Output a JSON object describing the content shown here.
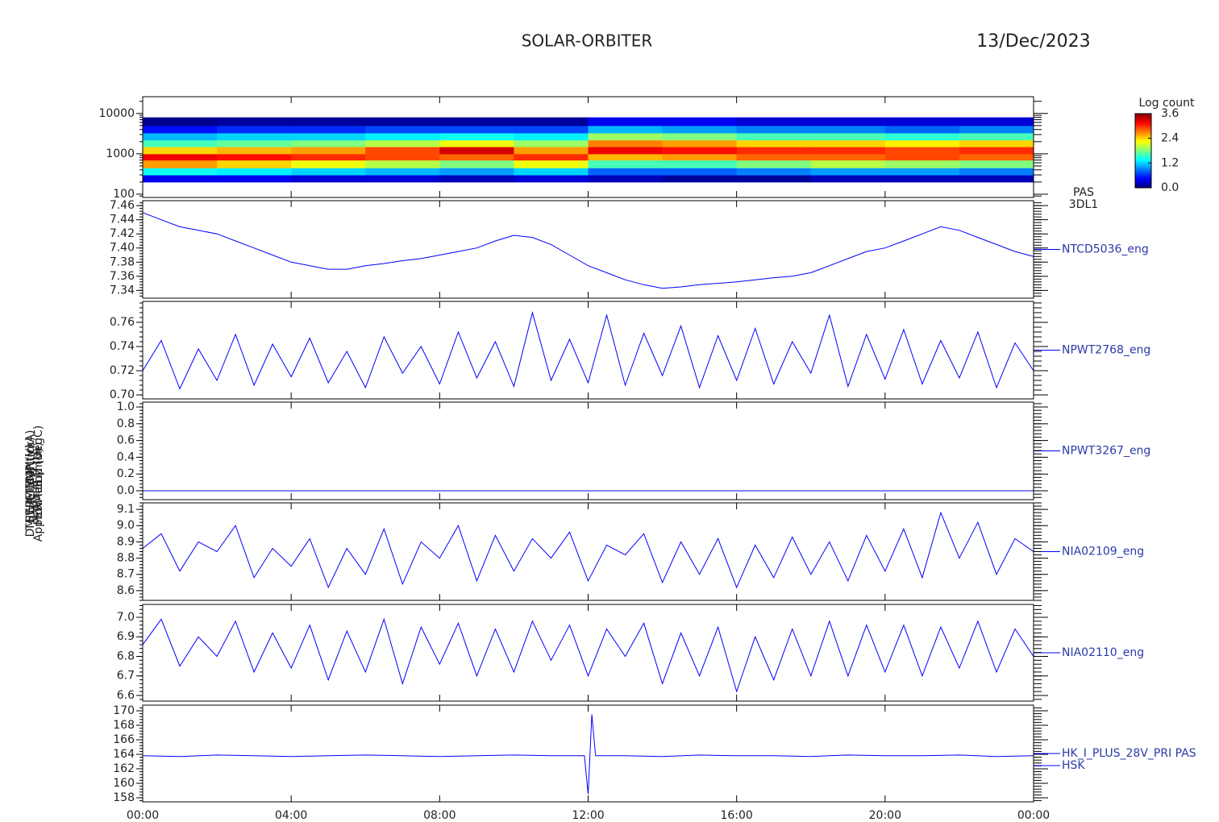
{
  "title": "SOLAR-ORBITER",
  "date": "13/Dec/2023",
  "chart_data": [
    {
      "type": "heatmap",
      "y_label": "E (eV)",
      "instrument": [
        "PAS",
        "3DL1"
      ],
      "log": true,
      "xlim": [
        0,
        24
      ],
      "ylim": [
        83,
        26000
      ],
      "yticks": [
        100,
        1000,
        10000
      ],
      "x_bins": [
        0,
        2,
        4,
        6,
        8,
        10,
        12,
        14,
        16,
        18,
        20,
        22,
        24
      ],
      "y_bins": [
        200,
        300,
        450,
        700,
        1000,
        1500,
        2200,
        3300,
        5000,
        8000
      ],
      "z": [
        [
          0.4,
          0.4,
          0.3,
          0.3,
          0.2,
          0.3,
          0.2,
          0.1,
          0.1,
          0.2,
          0.2,
          0.2
        ],
        [
          1.4,
          1.3,
          1.2,
          1.1,
          1.0,
          1.2,
          0.8,
          0.8,
          0.9,
          1.0,
          1.0,
          0.9
        ],
        [
          2.6,
          2.4,
          2.2,
          2.0,
          1.8,
          2.2,
          1.6,
          1.6,
          1.8,
          2.0,
          1.9,
          1.8
        ],
        [
          3.2,
          3.1,
          3.0,
          2.9,
          2.8,
          3.0,
          2.5,
          2.6,
          2.8,
          2.8,
          2.9,
          2.8
        ],
        [
          2.4,
          2.5,
          2.6,
          2.9,
          3.3,
          2.6,
          3.2,
          3.1,
          3.0,
          3.0,
          2.9,
          3.0
        ],
        [
          1.6,
          1.7,
          1.8,
          2.0,
          2.2,
          1.9,
          2.7,
          2.6,
          2.4,
          2.4,
          2.3,
          2.4
        ],
        [
          1.1,
          1.2,
          1.2,
          1.3,
          1.4,
          1.3,
          1.9,
          1.8,
          1.6,
          1.6,
          1.5,
          1.6
        ],
        [
          0.5,
          0.6,
          0.6,
          0.7,
          0.7,
          0.7,
          1.1,
          1.0,
          0.9,
          0.9,
          0.8,
          0.9
        ],
        [
          0.05,
          0.1,
          0.1,
          0.1,
          0.1,
          0.1,
          0.4,
          0.4,
          0.3,
          0.3,
          0.3,
          0.3
        ]
      ],
      "colormap": [
        "#000080",
        "#0000ff",
        "#0080ff",
        "#00ffff",
        "#80ff80",
        "#ffff00",
        "#ff8000",
        "#ff0000",
        "#800000"
      ],
      "colorbar": {
        "label": "Log count",
        "lim": [
          0,
          3.6
        ],
        "ticks": [
          {
            "value": 0,
            "label": "0.0"
          },
          1.2,
          2.4,
          3.6
        ]
      }
    },
    {
      "type": "line",
      "y_label": "Approx Temp (DegC)",
      "xlim": [
        0,
        24
      ],
      "ylim": [
        7.329,
        7.467
      ],
      "yticks": [
        7.34,
        7.36,
        7.38,
        {
          "value": 7.4,
          "label": "7.40"
        },
        7.42,
        7.44,
        7.46
      ],
      "x": [
        0,
        0.5,
        1,
        1.5,
        2,
        2.5,
        3,
        3.5,
        4,
        4.5,
        5,
        5.5,
        6,
        6.5,
        7,
        7.5,
        8,
        8.5,
        9,
        9.5,
        10,
        10.5,
        11,
        11.5,
        12,
        12.5,
        13,
        13.5,
        14,
        14.5,
        15,
        15.5,
        16,
        16.5,
        17,
        17.5,
        18,
        18.5,
        19,
        19.5,
        20,
        20.5,
        21,
        21.5,
        22,
        22.5,
        23,
        23.5,
        24
      ],
      "series": [
        {
          "name": "NTCD5036_eng",
          "color": "#0000ff",
          "values": [
            7.45,
            7.44,
            7.43,
            7.425,
            7.42,
            7.41,
            7.4,
            7.39,
            7.38,
            7.375,
            7.37,
            7.37,
            7.375,
            7.378,
            7.382,
            7.385,
            7.39,
            7.395,
            7.4,
            7.41,
            7.418,
            7.415,
            7.405,
            7.39,
            7.375,
            7.365,
            7.355,
            7.348,
            7.343,
            7.345,
            7.348,
            7.35,
            7.352,
            7.355,
            7.358,
            7.36,
            7.365,
            7.375,
            7.385,
            7.395,
            7.4,
            7.41,
            7.42,
            7.43,
            7.425,
            7.415,
            7.405,
            7.395,
            7.388
          ]
        }
      ]
    },
    {
      "type": "line",
      "y_label": "SWA-TEMP (V)",
      "xlim": [
        0,
        24
      ],
      "ylim": [
        0.6967,
        0.7773
      ],
      "yticks": [
        {
          "value": 0.7,
          "label": "0.70"
        },
        0.72,
        0.74,
        0.76
      ],
      "x": [
        0,
        0.5,
        1,
        1.5,
        2,
        2.5,
        3,
        3.5,
        4,
        4.5,
        5,
        5.5,
        6,
        6.5,
        7,
        7.5,
        8,
        8.5,
        9,
        9.5,
        10,
        10.5,
        11,
        11.5,
        12,
        12.5,
        13,
        13.5,
        14,
        14.5,
        15,
        15.5,
        16,
        16.5,
        17,
        17.5,
        18,
        18.5,
        19,
        19.5,
        20,
        20.5,
        21,
        21.5,
        22,
        22.5,
        23,
        23.5,
        24
      ],
      "series": [
        {
          "name": "NPWT2768_eng",
          "color": "#0000ff",
          "values": [
            0.72,
            0.745,
            0.705,
            0.738,
            0.712,
            0.75,
            0.708,
            0.742,
            0.715,
            0.747,
            0.71,
            0.736,
            0.706,
            0.748,
            0.718,
            0.74,
            0.709,
            0.752,
            0.714,
            0.744,
            0.707,
            0.768,
            0.712,
            0.746,
            0.71,
            0.766,
            0.708,
            0.751,
            0.716,
            0.757,
            0.706,
            0.749,
            0.712,
            0.755,
            0.709,
            0.744,
            0.718,
            0.766,
            0.707,
            0.75,
            0.713,
            0.754,
            0.709,
            0.745,
            0.714,
            0.752,
            0.706,
            0.743,
            0.72
          ]
        }
      ]
    },
    {
      "type": "line",
      "y_label": "SWA-LLM (V)",
      "xlim": [
        0,
        24
      ],
      "ylim": [
        -0.106,
        1.058
      ],
      "yticks": [
        {
          "value": 0,
          "label": "0.0"
        },
        0.2,
        0.4,
        0.6,
        0.8,
        {
          "value": 1,
          "label": "1.0"
        }
      ],
      "x": [
        0,
        24
      ],
      "series": [
        {
          "name": "NPWT3267_eng",
          "color": "#0000ff",
          "values": [
            0,
            0
          ]
        }
      ]
    },
    {
      "type": "line",
      "y_label": "THERM_C4 (tick)",
      "xlim": [
        0,
        24
      ],
      "ylim": [
        8.54,
        9.14
      ],
      "yticks": [
        8.6,
        8.7,
        8.8,
        8.9,
        {
          "value": 9,
          "label": "9.0"
        },
        9.1
      ],
      "x": [
        0,
        0.5,
        1,
        1.5,
        2,
        2.5,
        3,
        3.5,
        4,
        4.5,
        5,
        5.5,
        6,
        6.5,
        7,
        7.5,
        8,
        8.5,
        9,
        9.5,
        10,
        10.5,
        11,
        11.5,
        12,
        12.5,
        13,
        13.5,
        14,
        14.5,
        15,
        15.5,
        16,
        16.5,
        17,
        17.5,
        18,
        18.5,
        19,
        19.5,
        20,
        20.5,
        21,
        21.5,
        22,
        22.5,
        23,
        23.5,
        24
      ],
      "series": [
        {
          "name": "NIA02109_eng",
          "color": "#0000ff",
          "values": [
            8.86,
            8.95,
            8.72,
            8.9,
            8.84,
            9.0,
            8.68,
            8.86,
            8.75,
            8.92,
            8.62,
            8.86,
            8.7,
            8.98,
            8.64,
            8.9,
            8.8,
            9.0,
            8.66,
            8.94,
            8.72,
            8.92,
            8.8,
            8.96,
            8.66,
            8.88,
            8.82,
            8.95,
            8.65,
            8.9,
            8.7,
            8.92,
            8.62,
            8.88,
            8.68,
            8.93,
            8.7,
            8.9,
            8.66,
            8.94,
            8.72,
            8.98,
            8.68,
            9.08,
            8.8,
            9.02,
            8.7,
            8.92,
            8.84
          ]
        }
      ]
    },
    {
      "type": "line",
      "y_label": "PERMLB (mon)",
      "xlim": [
        0,
        24
      ],
      "ylim": [
        6.571,
        7.066
      ],
      "yticks": [
        6.6,
        6.7,
        6.8,
        6.9,
        {
          "value": 7,
          "label": "7.0"
        }
      ],
      "x": [
        0,
        0.5,
        1,
        1.5,
        2,
        2.5,
        3,
        3.5,
        4,
        4.5,
        5,
        5.5,
        6,
        6.5,
        7,
        7.5,
        8,
        8.5,
        9,
        9.5,
        10,
        10.5,
        11,
        11.5,
        12,
        12.5,
        13,
        13.5,
        14,
        14.5,
        15,
        15.5,
        16,
        16.5,
        17,
        17.5,
        18,
        18.5,
        19,
        19.5,
        20,
        20.5,
        21,
        21.5,
        22,
        22.5,
        23,
        23.5,
        24
      ],
      "series": [
        {
          "name": "NIA02110_eng",
          "color": "#0000ff",
          "values": [
            6.86,
            6.99,
            6.75,
            6.9,
            6.8,
            6.98,
            6.72,
            6.92,
            6.74,
            6.96,
            6.68,
            6.93,
            6.72,
            6.99,
            6.66,
            6.95,
            6.76,
            6.97,
            6.7,
            6.94,
            6.72,
            6.98,
            6.78,
            6.96,
            6.7,
            6.94,
            6.8,
            6.97,
            6.66,
            6.92,
            6.7,
            6.95,
            6.62,
            6.9,
            6.68,
            6.94,
            6.7,
            6.98,
            6.7,
            6.96,
            6.72,
            6.96,
            6.7,
            6.95,
            6.74,
            6.98,
            6.72,
            6.94,
            6.8
          ]
        }
      ]
    },
    {
      "type": "line",
      "y_label": "DM_HK_IMON (mA)",
      "instrument": [
        "HSK"
      ],
      "xlim": [
        0,
        24
      ],
      "ylim": [
        157.44,
        170.78
      ],
      "yticks": [
        158,
        160,
        162,
        164,
        166,
        168,
        170
      ],
      "xticks": [
        {
          "value": 0,
          "label": "00:00"
        },
        {
          "value": 4,
          "label": "04:00"
        },
        {
          "value": 8,
          "label": "08:00"
        },
        {
          "value": 12,
          "label": "12:00"
        },
        {
          "value": 16,
          "label": "16:00"
        },
        {
          "value": 20,
          "label": "20:00"
        },
        {
          "value": 24,
          "label": "00:00"
        }
      ],
      "x": [
        0,
        1,
        2,
        3,
        4,
        5,
        6,
        7,
        8,
        9,
        10,
        11,
        11.9,
        12,
        12.1,
        12.2,
        13,
        14,
        15,
        16,
        17,
        18,
        19,
        20,
        21,
        22,
        23,
        24
      ],
      "series": [
        {
          "name": "HK_I_PLUS_28V_PRI PAS",
          "color": "#0000ff",
          "values": [
            163.8,
            163.7,
            163.9,
            163.8,
            163.7,
            163.8,
            163.9,
            163.8,
            163.7,
            163.8,
            163.9,
            163.8,
            163.8,
            158.5,
            169.5,
            163.8,
            163.8,
            163.7,
            163.9,
            163.8,
            163.8,
            163.7,
            163.9,
            163.8,
            163.8,
            163.9,
            163.7,
            163.8
          ]
        }
      ]
    }
  ]
}
